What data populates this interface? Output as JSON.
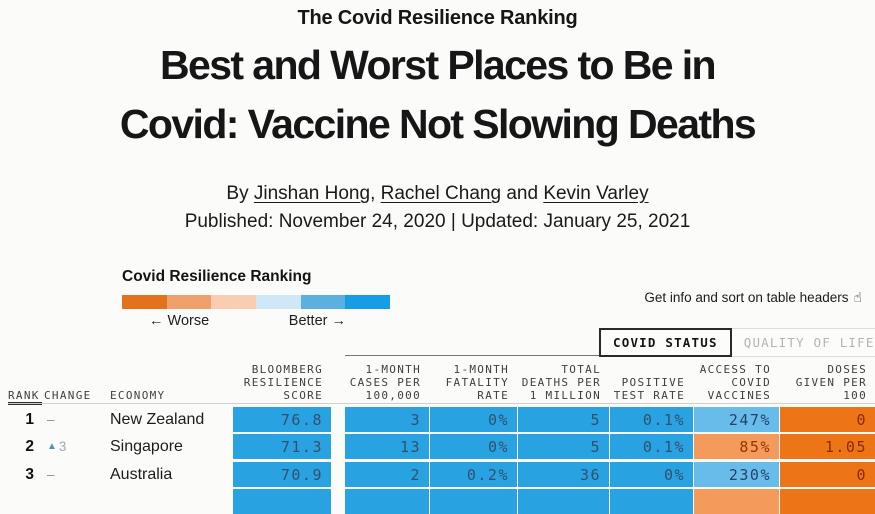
{
  "article": {
    "kicker": "The Covid Resilience Ranking",
    "headline_line1": "Best and Worst Places to Be in",
    "headline_line2": "Covid: Vaccine Not Slowing Deaths",
    "byline": {
      "prefix": "By ",
      "authors": [
        "Jinshan Hong",
        "Rachel Chang",
        "Kevin Varley"
      ],
      "joiner_mid": ", ",
      "joiner_last": " and "
    },
    "published_line": "Published: November 24, 2020 | Updated: January 25, 2021"
  },
  "legend": {
    "title": "Covid Resilience Ranking",
    "worse_label": "← Worse",
    "better_label": "Better →",
    "gradient_colors": [
      "#e4711b",
      "#f0a06b",
      "#f8cdb0",
      "#cfe7f7",
      "#5cb0e0",
      "#169de4"
    ]
  },
  "help_note": {
    "text": "Get info and sort on table headers",
    "icon_glyph": "☝"
  },
  "tabs": [
    {
      "label": "COVID STATUS",
      "active": true
    },
    {
      "label": "QUALITY OF LIFE",
      "active": false,
      "dropdown_icon": "▼"
    }
  ],
  "table": {
    "columns": [
      {
        "id": "rank",
        "lines": [
          "RANK"
        ],
        "numeric": false,
        "sorted": true
      },
      {
        "id": "change",
        "lines": [
          "CHANGE"
        ],
        "numeric": false
      },
      {
        "id": "economy",
        "lines": [
          "ECONOMY"
        ],
        "numeric": false
      },
      {
        "id": "score",
        "lines": [
          "BLOOMBERG",
          "RESILIENCE",
          "SCORE"
        ],
        "numeric": true
      },
      {
        "id": "cases",
        "lines": [
          "1-MONTH",
          "CASES PER",
          "100,000"
        ],
        "numeric": true
      },
      {
        "id": "fatality",
        "lines": [
          "1-MONTH",
          "FATALITY",
          "RATE"
        ],
        "numeric": true
      },
      {
        "id": "deaths",
        "lines": [
          "TOTAL",
          "DEATHS PER",
          "1 MILLION"
        ],
        "numeric": true
      },
      {
        "id": "positive",
        "lines": [
          "POSITIVE",
          "TEST RATE"
        ],
        "numeric": true
      },
      {
        "id": "access",
        "lines": [
          "ACCESS TO",
          "COVID",
          "VACCINES"
        ],
        "numeric": true
      },
      {
        "id": "doses",
        "lines": [
          "DOSES",
          "GIVEN PER",
          "100"
        ],
        "numeric": true
      }
    ],
    "rows": [
      {
        "rank": "1",
        "change": {
          "symbol": "–"
        },
        "economy": "New Zealand",
        "cells": [
          {
            "v": "76.8",
            "tone": "blue"
          },
          {
            "v": "3",
            "tone": "blue"
          },
          {
            "v": "0%",
            "tone": "blue"
          },
          {
            "v": "5",
            "tone": "blue"
          },
          {
            "v": "0.1%",
            "tone": "blue"
          },
          {
            "v": "247%",
            "tone": "blue-light"
          },
          {
            "v": "0",
            "tone": "orange"
          }
        ]
      },
      {
        "rank": "2",
        "change": {
          "arrow": "▲",
          "moves": "3"
        },
        "economy": "Singapore",
        "cells": [
          {
            "v": "71.3",
            "tone": "blue"
          },
          {
            "v": "13",
            "tone": "blue"
          },
          {
            "v": "0%",
            "tone": "blue"
          },
          {
            "v": "5",
            "tone": "blue"
          },
          {
            "v": "0.1%",
            "tone": "blue"
          },
          {
            "v": "85%",
            "tone": "orange-light"
          },
          {
            "v": "1.05",
            "tone": "orange"
          }
        ]
      },
      {
        "rank": "3",
        "change": {
          "symbol": "–"
        },
        "economy": "Australia",
        "cells": [
          {
            "v": "70.9",
            "tone": "blue"
          },
          {
            "v": "2",
            "tone": "blue"
          },
          {
            "v": "0.2%",
            "tone": "blue"
          },
          {
            "v": "36",
            "tone": "blue"
          },
          {
            "v": "0%",
            "tone": "blue"
          },
          {
            "v": "230%",
            "tone": "blue-light"
          },
          {
            "v": "0",
            "tone": "orange"
          }
        ]
      }
    ],
    "partial_row_tones": [
      "blue",
      "blue",
      "blue",
      "blue",
      "blue",
      "orange-light",
      "orange"
    ]
  },
  "colors": {
    "cell_blue": "#29a2e2",
    "cell_blue_light": "#68bcea",
    "cell_orange": "#ee7517",
    "cell_orange_light": "#f49a5b",
    "text_on_blue": "#31516d",
    "text_on_blue_light": "#24426b",
    "text_on_orange": "#8a2a00",
    "text_on_orange_light": "#993300",
    "change_up_arrow": "#4d94b5"
  }
}
